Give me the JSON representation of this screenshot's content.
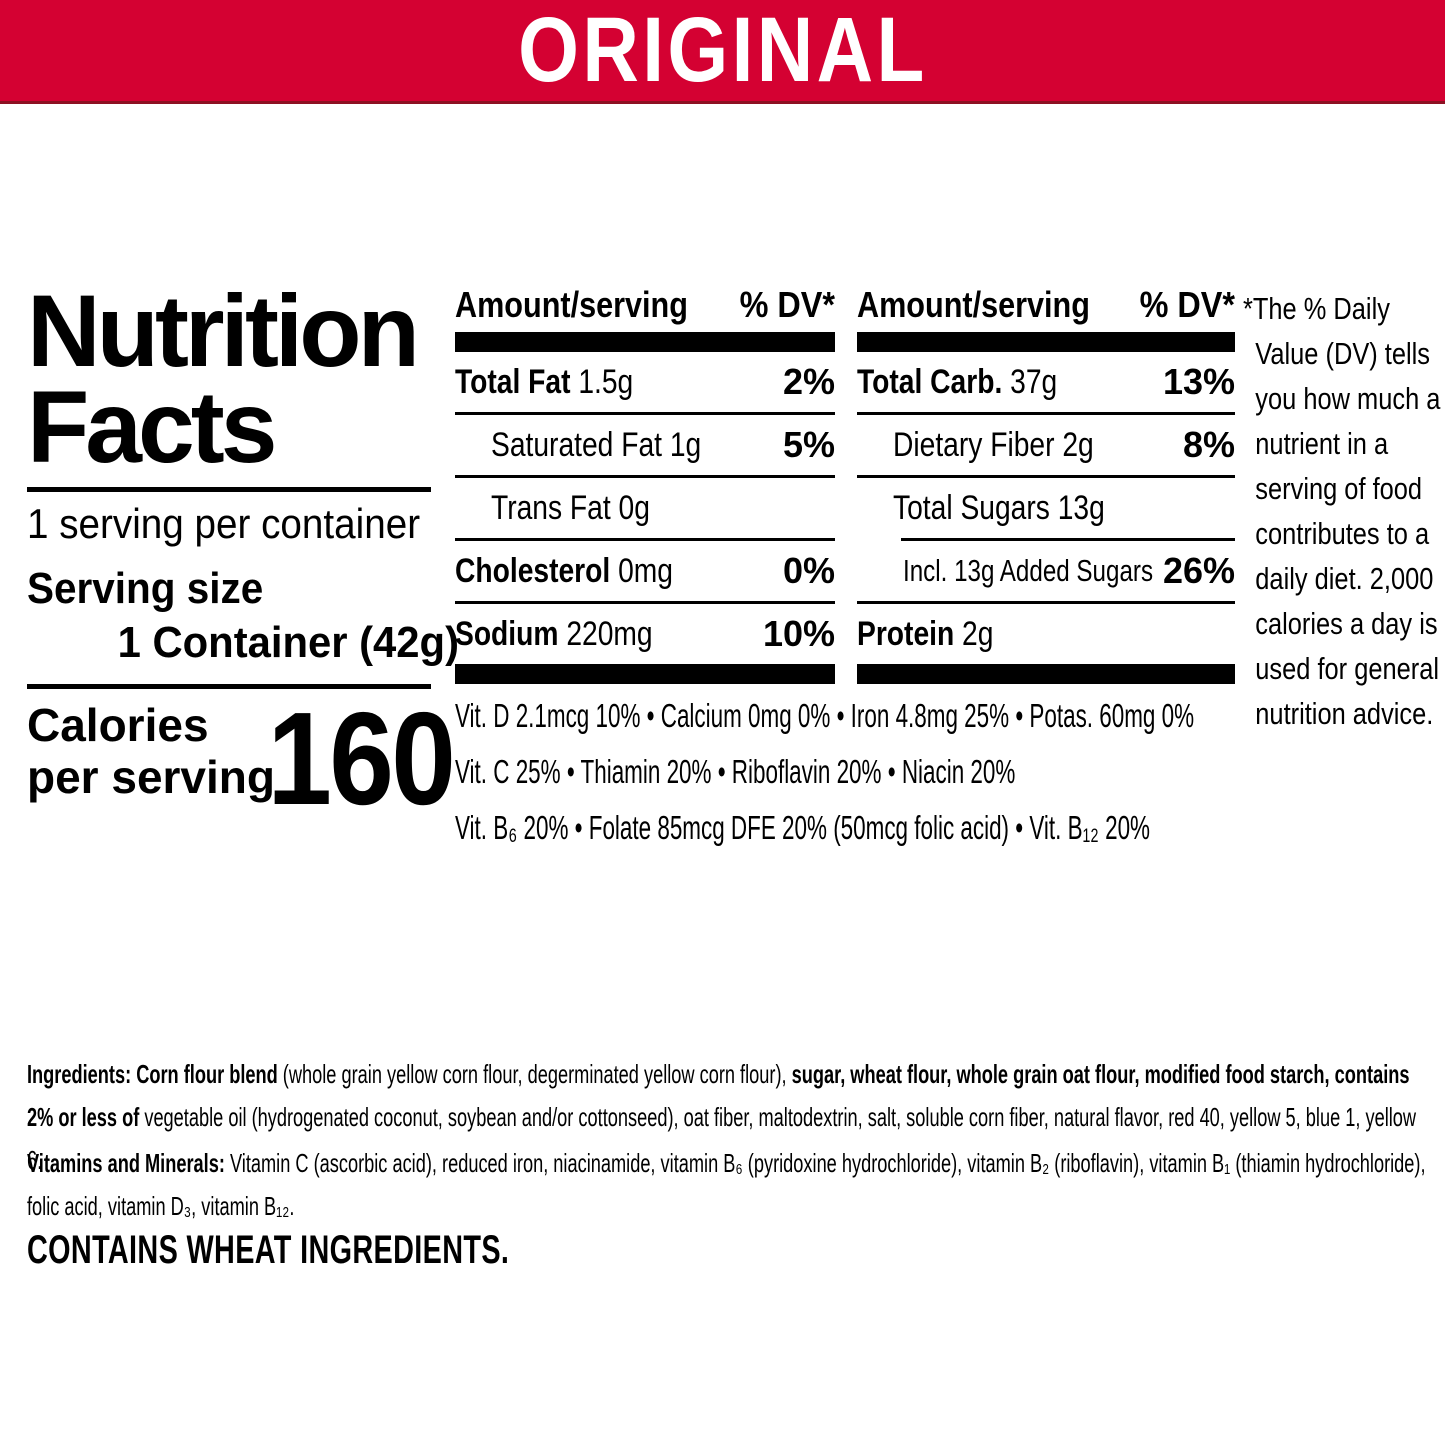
{
  "banner": {
    "label": "ORIGINAL",
    "bg_color": "#d40132",
    "text_color": "#ffffff"
  },
  "panel": {
    "title_lines": [
      "Nutrition",
      "Facts"
    ],
    "servings_per_container": "1 serving per container",
    "serving_size_label": "Serving size",
    "serving_size_value": "1 Container (42g)",
    "calories_label_line1": "Calories",
    "calories_label_line2": "per serving",
    "calories_value": "160"
  },
  "table": {
    "amount_header": "Amount/serving",
    "dv_header": "% DV*",
    "left": [
      {
        "bold": "Total Fat",
        "rest": " 1.5g",
        "dv": "2%"
      },
      {
        "bold": "",
        "rest": "Saturated Fat 1g",
        "dv": "5%"
      },
      {
        "bold": "",
        "rest": "Trans Fat 0g",
        "dv": ""
      },
      {
        "bold": "Cholesterol",
        "rest": " 0mg",
        "dv": "0%"
      },
      {
        "bold": "Sodium",
        "rest": " 220mg",
        "dv": "10%"
      }
    ],
    "right": [
      {
        "bold": "Total Carb.",
        "rest": " 37g",
        "dv": "13%"
      },
      {
        "bold": "",
        "rest": "Dietary Fiber 2g",
        "dv": "8%"
      },
      {
        "bold": "",
        "rest": "Total Sugars 13g",
        "dv": ""
      },
      {
        "bold": "",
        "rest": "Incl. 13g Added Sugars",
        "dv": "26%"
      },
      {
        "bold": "Protein",
        "rest": " 2g",
        "dv": ""
      }
    ]
  },
  "vitamins": [
    "Vit. D 2.1mcg 10% • Calcium 0mg 0% • Iron 4.8mg 25% • Potas. 60mg 0%",
    "Vit. C 25% • Thiamin 20% • Riboflavin 20% • Niacin 20%",
    "Vit. B₆ 20% • Folate 85mcg DFE 20% (50mcg folic acid) • Vit. B₁₂ 20%"
  ],
  "footnote": "*The % Daily Value (DV) tells you how much a nutrient in a serving of food contributes to a daily diet. 2,000 calories a day is used for general nutrition advice.",
  "ingredients": {
    "bold1": "Ingredients: Corn flour blend",
    "reg1": " (whole grain yellow corn flour, degerminated yellow corn flour), ",
    "bold2": "sugar, wheat flour, whole grain oat flour, modified food starch, contains 2% or less of ",
    "reg2": "vegetable oil (hydrogenated coconut, soybean and/or cottonseed), oat fiber, maltodextrin, salt, soluble corn fiber, natural flavor, red 40, yellow 5, blue 1, yellow 6."
  },
  "vitamins_minerals": {
    "bold1": "Vitamins and Minerals:",
    "reg1": " Vitamin C (ascorbic acid), reduced iron, niacinamide, vitamin B₆ (pyridoxine hydrochloride), vitamin B₂ (riboflavin), vitamin B₁ (thiamin hydrochloride), folic acid, vitamin D₃, vitamin B₁₂."
  },
  "allergen": "CONTAINS WHEAT INGREDIENTS."
}
